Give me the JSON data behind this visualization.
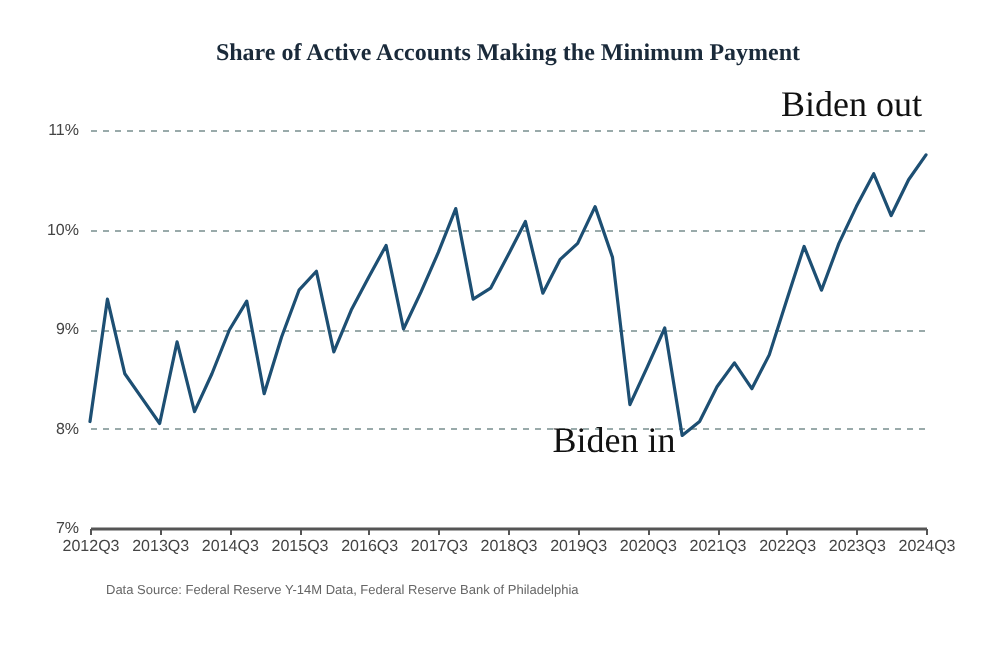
{
  "chart_data": {
    "type": "line",
    "title": "Share of Active Accounts Making the Minimum Payment",
    "categories": [
      "2012Q3",
      null,
      null,
      null,
      "2013Q3",
      null,
      null,
      null,
      "2014Q3",
      null,
      null,
      null,
      "2015Q3",
      null,
      null,
      null,
      "2016Q3",
      null,
      null,
      null,
      "2017Q3",
      null,
      null,
      null,
      "2018Q3",
      null,
      null,
      null,
      "2019Q3",
      null,
      null,
      null,
      "2020Q3",
      null,
      null,
      null,
      "2021Q3",
      null,
      null,
      null,
      "2022Q3",
      null,
      null,
      null,
      "2023Q3",
      null,
      null,
      null,
      "2024Q3"
    ],
    "series": [
      {
        "color": "#1d4f73",
        "values": [
          8.07,
          9.3,
          8.55,
          8.3,
          8.05,
          8.87,
          8.17,
          8.55,
          8.99,
          9.28,
          8.35,
          8.92,
          9.39,
          9.58,
          8.77,
          9.19,
          9.52,
          9.84,
          9.0,
          9.37,
          9.77,
          10.21,
          9.3,
          9.41,
          9.74,
          10.08,
          9.36,
          9.7,
          9.86,
          10.23,
          9.72,
          8.24,
          8.62,
          9.01,
          7.93,
          8.07,
          8.42,
          8.66,
          8.4,
          8.74,
          9.29,
          9.83,
          9.39,
          9.86,
          10.23,
          10.56,
          10.14,
          10.5,
          10.75
        ]
      }
    ],
    "ylim": [
      7,
      11
    ],
    "yticks": [
      {
        "value": 7,
        "label": "7%"
      },
      {
        "value": 8,
        "label": "8%"
      },
      {
        "value": 9,
        "label": "9%"
      },
      {
        "value": 10,
        "label": "10%"
      },
      {
        "value": 11,
        "label": "11%"
      }
    ],
    "grid": "y",
    "line_style": "solid",
    "marker": "none",
    "annotations": [
      "Biden out",
      "Biden in",
      "Data Source: Federal Reserve Y-14M Data, Federal Reserve Bank of Philadelphia"
    ]
  }
}
